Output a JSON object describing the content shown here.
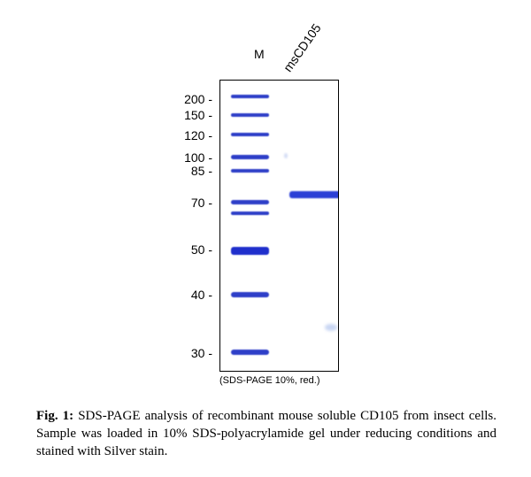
{
  "lanes": {
    "marker": "M",
    "sample": "msCD105"
  },
  "mw_markers": [
    "200 -",
    "150 -",
    "120 -",
    "100 -",
    "85 -",
    "70 -",
    "50 -",
    "40 -",
    "30 -"
  ],
  "gel_caption": "(SDS-PAGE 10%, red.)",
  "figure_caption": {
    "label": "Fig. 1:",
    "text": "SDS-PAGE analysis of recombinant mouse soluble CD105 from insect cells. Sample was loaded in 10% SDS-polyacrylamide gel under reducing conditions and stained with Silver stain."
  },
  "colors": {
    "band": "#2e3fc8"
  }
}
